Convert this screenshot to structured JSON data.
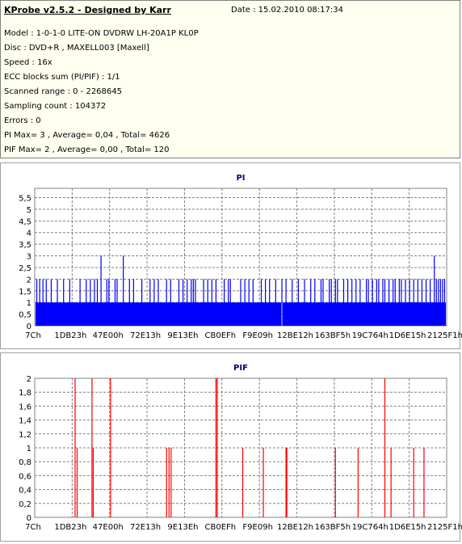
{
  "info": {
    "title": "KProbe v2.5.2 - Designed by Karr",
    "date": "Date : 15.02.2010 08:17:34",
    "lines": [
      "Model : 1-0-1-0 LITE-ON DVDRW LH-20A1P   KL0P",
      "Disc : DVD+R , MAXELL003 [Maxell]",
      "Speed : 16x",
      "ECC blocks sum (PI/PIF) : 1/1",
      "Scanned range : 0 - 2268645",
      "Sampling count : 104372",
      "Errors : 0",
      "PI Max= 3 , Average= 0,04 , Total= 4626",
      "PIF Max= 2 , Average= 0,00 , Total= 120"
    ]
  },
  "chart_data": [
    {
      "type": "bar",
      "title": "PI",
      "color": "#0000ff",
      "ylim": [
        0,
        5.9
      ],
      "yticks": [
        "0",
        "0,5",
        "1",
        "1,5",
        "2",
        "2,5",
        "3",
        "3,5",
        "4",
        "4,5",
        "5",
        "5,5"
      ],
      "xticks": [
        "7Ch",
        "1DB23h",
        "47E00h",
        "72E13h",
        "9E13Eh",
        "CB0EFh",
        "F9E09h",
        "12BE12h",
        "163BF5h",
        "19C764h",
        "1D6E15h",
        "2125F1h"
      ],
      "baseline": 1,
      "baseline_gap": 0.6,
      "x_range": [
        0,
        1
      ],
      "spikes": [
        {
          "x": 0.005,
          "v": 2
        },
        {
          "x": 0.012,
          "v": 2
        },
        {
          "x": 0.02,
          "v": 2
        },
        {
          "x": 0.028,
          "v": 2
        },
        {
          "x": 0.04,
          "v": 2
        },
        {
          "x": 0.055,
          "v": 2
        },
        {
          "x": 0.07,
          "v": 2
        },
        {
          "x": 0.085,
          "v": 2
        },
        {
          "x": 0.11,
          "v": 2
        },
        {
          "x": 0.125,
          "v": 2
        },
        {
          "x": 0.135,
          "v": 2
        },
        {
          "x": 0.145,
          "v": 2
        },
        {
          "x": 0.152,
          "v": 2
        },
        {
          "x": 0.161,
          "v": 3
        },
        {
          "x": 0.175,
          "v": 2
        },
        {
          "x": 0.18,
          "v": 2
        },
        {
          "x": 0.195,
          "v": 2
        },
        {
          "x": 0.2,
          "v": 2
        },
        {
          "x": 0.215,
          "v": 3
        },
        {
          "x": 0.23,
          "v": 2
        },
        {
          "x": 0.24,
          "v": 2
        },
        {
          "x": 0.26,
          "v": 2
        },
        {
          "x": 0.28,
          "v": 2
        },
        {
          "x": 0.29,
          "v": 2
        },
        {
          "x": 0.3,
          "v": 2
        },
        {
          "x": 0.32,
          "v": 2
        },
        {
          "x": 0.33,
          "v": 2
        },
        {
          "x": 0.35,
          "v": 2
        },
        {
          "x": 0.36,
          "v": 2
        },
        {
          "x": 0.37,
          "v": 2
        },
        {
          "x": 0.38,
          "v": 2
        },
        {
          "x": 0.385,
          "v": 2
        },
        {
          "x": 0.39,
          "v": 2
        },
        {
          "x": 0.41,
          "v": 2
        },
        {
          "x": 0.42,
          "v": 2
        },
        {
          "x": 0.43,
          "v": 2
        },
        {
          "x": 0.44,
          "v": 2
        },
        {
          "x": 0.46,
          "v": 2
        },
        {
          "x": 0.47,
          "v": 2
        },
        {
          "x": 0.475,
          "v": 2
        },
        {
          "x": 0.5,
          "v": 2
        },
        {
          "x": 0.51,
          "v": 2
        },
        {
          "x": 0.52,
          "v": 2
        },
        {
          "x": 0.53,
          "v": 2
        },
        {
          "x": 0.55,
          "v": 2
        },
        {
          "x": 0.56,
          "v": 2
        },
        {
          "x": 0.57,
          "v": 2
        },
        {
          "x": 0.585,
          "v": 2
        },
        {
          "x": 0.6,
          "v": 2
        },
        {
          "x": 0.61,
          "v": 2
        },
        {
          "x": 0.625,
          "v": 2
        },
        {
          "x": 0.64,
          "v": 2
        },
        {
          "x": 0.655,
          "v": 2
        },
        {
          "x": 0.67,
          "v": 2
        },
        {
          "x": 0.68,
          "v": 2
        },
        {
          "x": 0.695,
          "v": 2
        },
        {
          "x": 0.7,
          "v": 2
        },
        {
          "x": 0.715,
          "v": 2
        },
        {
          "x": 0.72,
          "v": 2
        },
        {
          "x": 0.73,
          "v": 2
        },
        {
          "x": 0.735,
          "v": 2
        },
        {
          "x": 0.75,
          "v": 2
        },
        {
          "x": 0.76,
          "v": 2
        },
        {
          "x": 0.77,
          "v": 2
        },
        {
          "x": 0.78,
          "v": 2
        },
        {
          "x": 0.79,
          "v": 2
        },
        {
          "x": 0.805,
          "v": 2
        },
        {
          "x": 0.81,
          "v": 2
        },
        {
          "x": 0.82,
          "v": 2
        },
        {
          "x": 0.83,
          "v": 2
        },
        {
          "x": 0.835,
          "v": 2
        },
        {
          "x": 0.845,
          "v": 2
        },
        {
          "x": 0.85,
          "v": 2
        },
        {
          "x": 0.86,
          "v": 2
        },
        {
          "x": 0.87,
          "v": 2
        },
        {
          "x": 0.875,
          "v": 2
        },
        {
          "x": 0.885,
          "v": 2
        },
        {
          "x": 0.89,
          "v": 2
        },
        {
          "x": 0.9,
          "v": 2
        },
        {
          "x": 0.91,
          "v": 2
        },
        {
          "x": 0.92,
          "v": 2
        },
        {
          "x": 0.93,
          "v": 2
        },
        {
          "x": 0.94,
          "v": 2
        },
        {
          "x": 0.95,
          "v": 2
        },
        {
          "x": 0.96,
          "v": 2
        },
        {
          "x": 0.97,
          "v": 3
        },
        {
          "x": 0.975,
          "v": 2
        },
        {
          "x": 0.98,
          "v": 2
        },
        {
          "x": 0.985,
          "v": 2
        },
        {
          "x": 0.99,
          "v": 2
        },
        {
          "x": 0.995,
          "v": 2
        }
      ]
    },
    {
      "type": "bar",
      "title": "PIF",
      "color": "#ff0000",
      "ylim": [
        0,
        2
      ],
      "yticks": [
        "0",
        "0,2",
        "0,4",
        "0,6",
        "0,8",
        "1",
        "1,2",
        "1,4",
        "1,6",
        "1,8",
        "2"
      ],
      "xticks": [
        "7Ch",
        "1DB23h",
        "47E00h",
        "72E13h",
        "9E13Eh",
        "CB0EFh",
        "F9E09h",
        "12BE12h",
        "163BF5h",
        "19C764h",
        "1D6E15h",
        "2125F1h"
      ],
      "x_range": [
        0,
        1
      ],
      "spikes": [
        {
          "x": 0.098,
          "v": 2
        },
        {
          "x": 0.103,
          "v": 1
        },
        {
          "x": 0.139,
          "v": 2
        },
        {
          "x": 0.142,
          "v": 1
        },
        {
          "x": 0.184,
          "v": 2
        },
        {
          "x": 0.32,
          "v": 1
        },
        {
          "x": 0.326,
          "v": 1
        },
        {
          "x": 0.331,
          "v": 1
        },
        {
          "x": 0.44,
          "v": 2
        },
        {
          "x": 0.443,
          "v": 2
        },
        {
          "x": 0.505,
          "v": 1
        },
        {
          "x": 0.555,
          "v": 1
        },
        {
          "x": 0.61,
          "v": 1
        },
        {
          "x": 0.612,
          "v": 1
        },
        {
          "x": 0.73,
          "v": 1
        },
        {
          "x": 0.785,
          "v": 1
        },
        {
          "x": 0.85,
          "v": 2
        },
        {
          "x": 0.865,
          "v": 1
        },
        {
          "x": 0.92,
          "v": 1
        },
        {
          "x": 0.945,
          "v": 1
        }
      ]
    }
  ]
}
